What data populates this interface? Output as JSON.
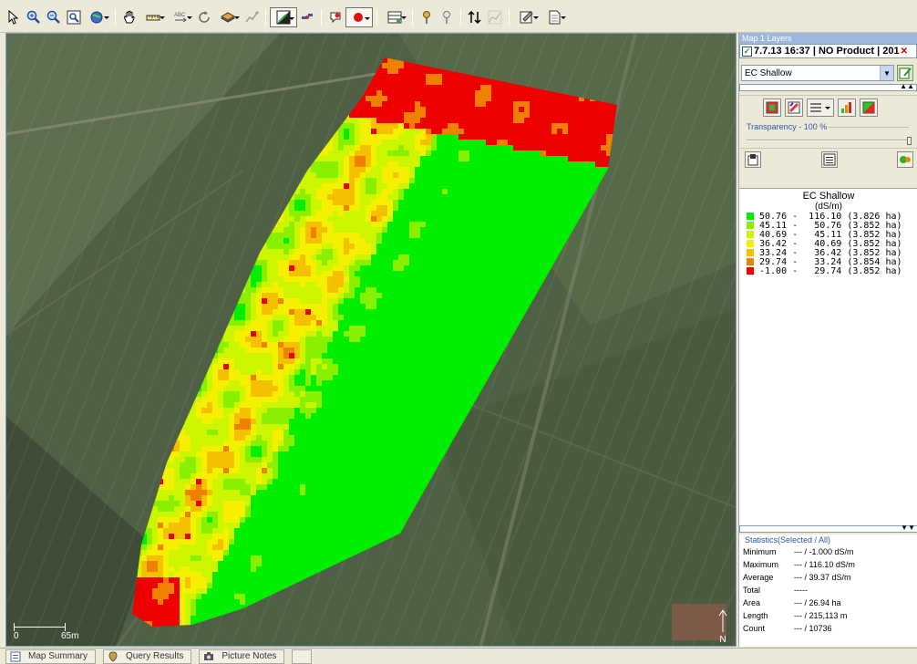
{
  "toolbar": {
    "buttons": [
      "pointer-icon",
      "zoom-in-icon",
      "zoom-out-icon",
      "zoom-extent-icon",
      "globe-icon",
      "pan-icon",
      "measure-icon",
      "label-icon",
      "refresh-icon",
      "layers-icon",
      "route-icon",
      "fill-icon",
      "satellite-icon",
      "bubble-icon",
      "record-icon",
      "grid-icon",
      "pin-icon",
      "pin2-icon",
      "sort-icon",
      "chart-icon",
      "edit-icon",
      "page-icon"
    ]
  },
  "map": {
    "scale_start": "0",
    "scale_end": "65m",
    "north": "N"
  },
  "panel": {
    "title": "Map 1 Layers",
    "layer_label": "7.7.13 16:37 | NO Product | 201",
    "layer_select": "EC Shallow",
    "transparency": "Transparency - 100 %",
    "transparency_value": 100
  },
  "legend": {
    "title": "EC Shallow",
    "unit": "(dS/m)",
    "rows": [
      {
        "text": "50.76 -  116.10 (3.826 ha)",
        "color": "#00ee00"
      },
      {
        "text": "45.11 -   50.76 (3.852 ha)",
        "color": "#88f000"
      },
      {
        "text": "40.69 -   45.11 (3.852 ha)",
        "color": "#ccf500"
      },
      {
        "text": "36.42 -   40.69 (3.852 ha)",
        "color": "#f5f000"
      },
      {
        "text": "33.24 -   36.42 (3.852 ha)",
        "color": "#f5c000"
      },
      {
        "text": "29.74 -   33.24 (3.854 ha)",
        "color": "#f08000"
      },
      {
        "text": "-1.00 -   29.74 (3.852 ha)",
        "color": "#ee0000"
      }
    ]
  },
  "stats": {
    "title": "Statistics(Selected / All)",
    "rows": [
      {
        "k": "Minimum",
        "v": "--- / -1.000 dS/m"
      },
      {
        "k": "Maximum",
        "v": "--- / 116.10 dS/m"
      },
      {
        "k": "Average",
        "v": "--- / 39.37 dS/m"
      },
      {
        "k": "Total",
        "v": "-----"
      },
      {
        "k": "Area",
        "v": "--- / 26.94 ha"
      },
      {
        "k": "Length",
        "v": "--- / 215,113 m"
      },
      {
        "k": "Count",
        "v": "--- / 10736"
      }
    ]
  },
  "statusbar": {
    "tabs": [
      {
        "label": "Map Summary",
        "icon": "summary-icon"
      },
      {
        "label": "Query Results",
        "icon": "query-icon"
      },
      {
        "label": "Picture Notes",
        "icon": "camera-icon"
      }
    ]
  }
}
